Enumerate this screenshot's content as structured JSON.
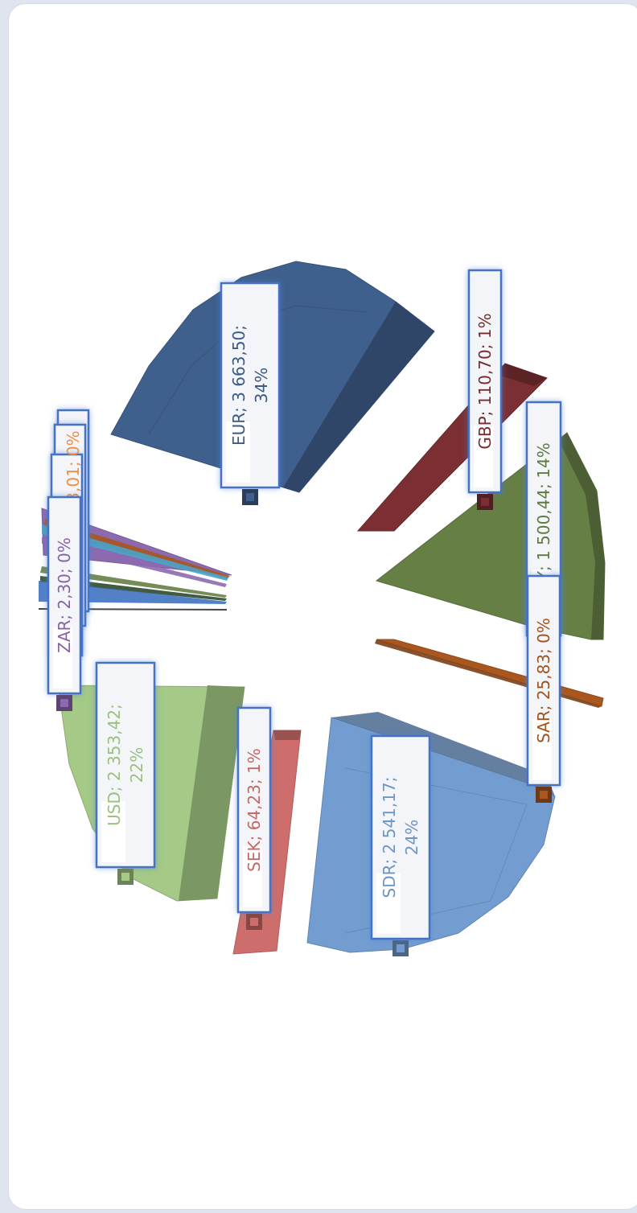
{
  "chart_data": {
    "type": "pie",
    "title": "",
    "legend": "none",
    "slices": [
      {
        "label": "EUR",
        "value": "3 663,50",
        "percent": "34%",
        "line1": "EUR; 3 663,50;",
        "line2": "34%",
        "color": "#3f5f8c"
      },
      {
        "label": "GBP",
        "value": "110,70",
        "percent": "1%",
        "line1": "GBP; 110,70; 1%",
        "line2": "",
        "color": "#7b2f32"
      },
      {
        "label": "JPY",
        "value": "1 500,44",
        "percent": "14%",
        "line1": "JPY; 1 500,44; 14%",
        "line2": "",
        "color": "#667f45"
      },
      {
        "label": "SAR",
        "value": "25,83",
        "percent": "0%",
        "line1": "SAR; 25,83; 0%",
        "line2": "",
        "color": "#a9571f"
      },
      {
        "label": "SDR",
        "value": "2 541,17",
        "percent": "24%",
        "line1": "SDR; 2 541,17;",
        "line2": "24%",
        "color": "#739dd0"
      },
      {
        "label": "SEK",
        "value": "64,23",
        "percent": "1%",
        "line1": "SEK; 64,23; 1%",
        "line2": "",
        "color": "#cd6e6c"
      },
      {
        "label": "USD",
        "value": "2 353,42",
        "percent": "22%",
        "line1": "USD; 2 353,42;",
        "line2": "22%",
        "color": "#a5c986"
      },
      {
        "label": "ZAR",
        "value": "2,30",
        "percent": "0%",
        "line1": "ZAR; 2,30; 0%",
        "line2": "",
        "color": "#8d6ab0"
      }
    ],
    "partial_labels": [
      {
        "text": "3,01; 0%",
        "color": "#ef8f45"
      }
    ]
  }
}
